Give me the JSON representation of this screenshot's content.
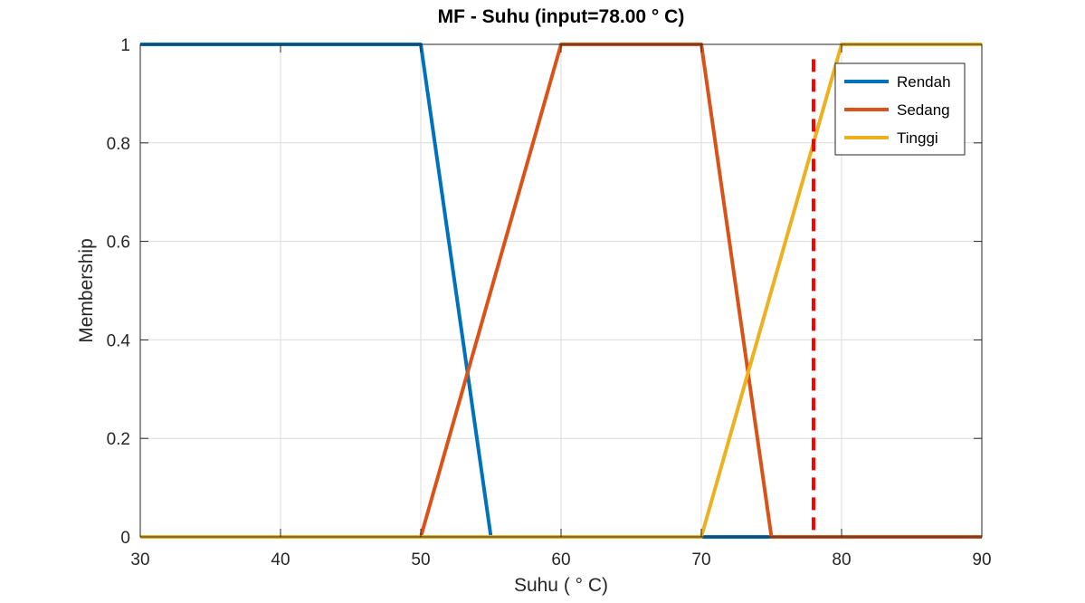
{
  "chart_data": {
    "type": "line",
    "title": "MF - Suhu (input=78.00 ° C)",
    "xlabel": "Suhu ( ° C)",
    "ylabel": "Membership",
    "xlim": [
      30,
      90
    ],
    "ylim": [
      0,
      1
    ],
    "x_ticks": [
      "30",
      "40",
      "50",
      "60",
      "70",
      "80",
      "90"
    ],
    "y_ticks": [
      "0",
      "0.2",
      "0.4",
      "0.6",
      "0.8",
      "1"
    ],
    "grid": true,
    "legend_position": "top-right",
    "series": [
      {
        "name": "Rendah",
        "color": "#0072BD",
        "x": [
          30,
          50,
          55,
          90
        ],
        "y": [
          1,
          1,
          0,
          0
        ]
      },
      {
        "name": "Sedang",
        "color": "#D95319",
        "x": [
          30,
          50,
          60,
          70,
          75,
          90
        ],
        "y": [
          0,
          0,
          1,
          1,
          0,
          0
        ]
      },
      {
        "name": "Tinggi",
        "color": "#EDB120",
        "x": [
          30,
          70,
          80,
          90
        ],
        "y": [
          0,
          0,
          1,
          1
        ]
      }
    ],
    "input_marker": {
      "x": 78,
      "y_range": [
        0,
        0.97
      ],
      "color": "#FF0000",
      "style": "dashed"
    }
  }
}
